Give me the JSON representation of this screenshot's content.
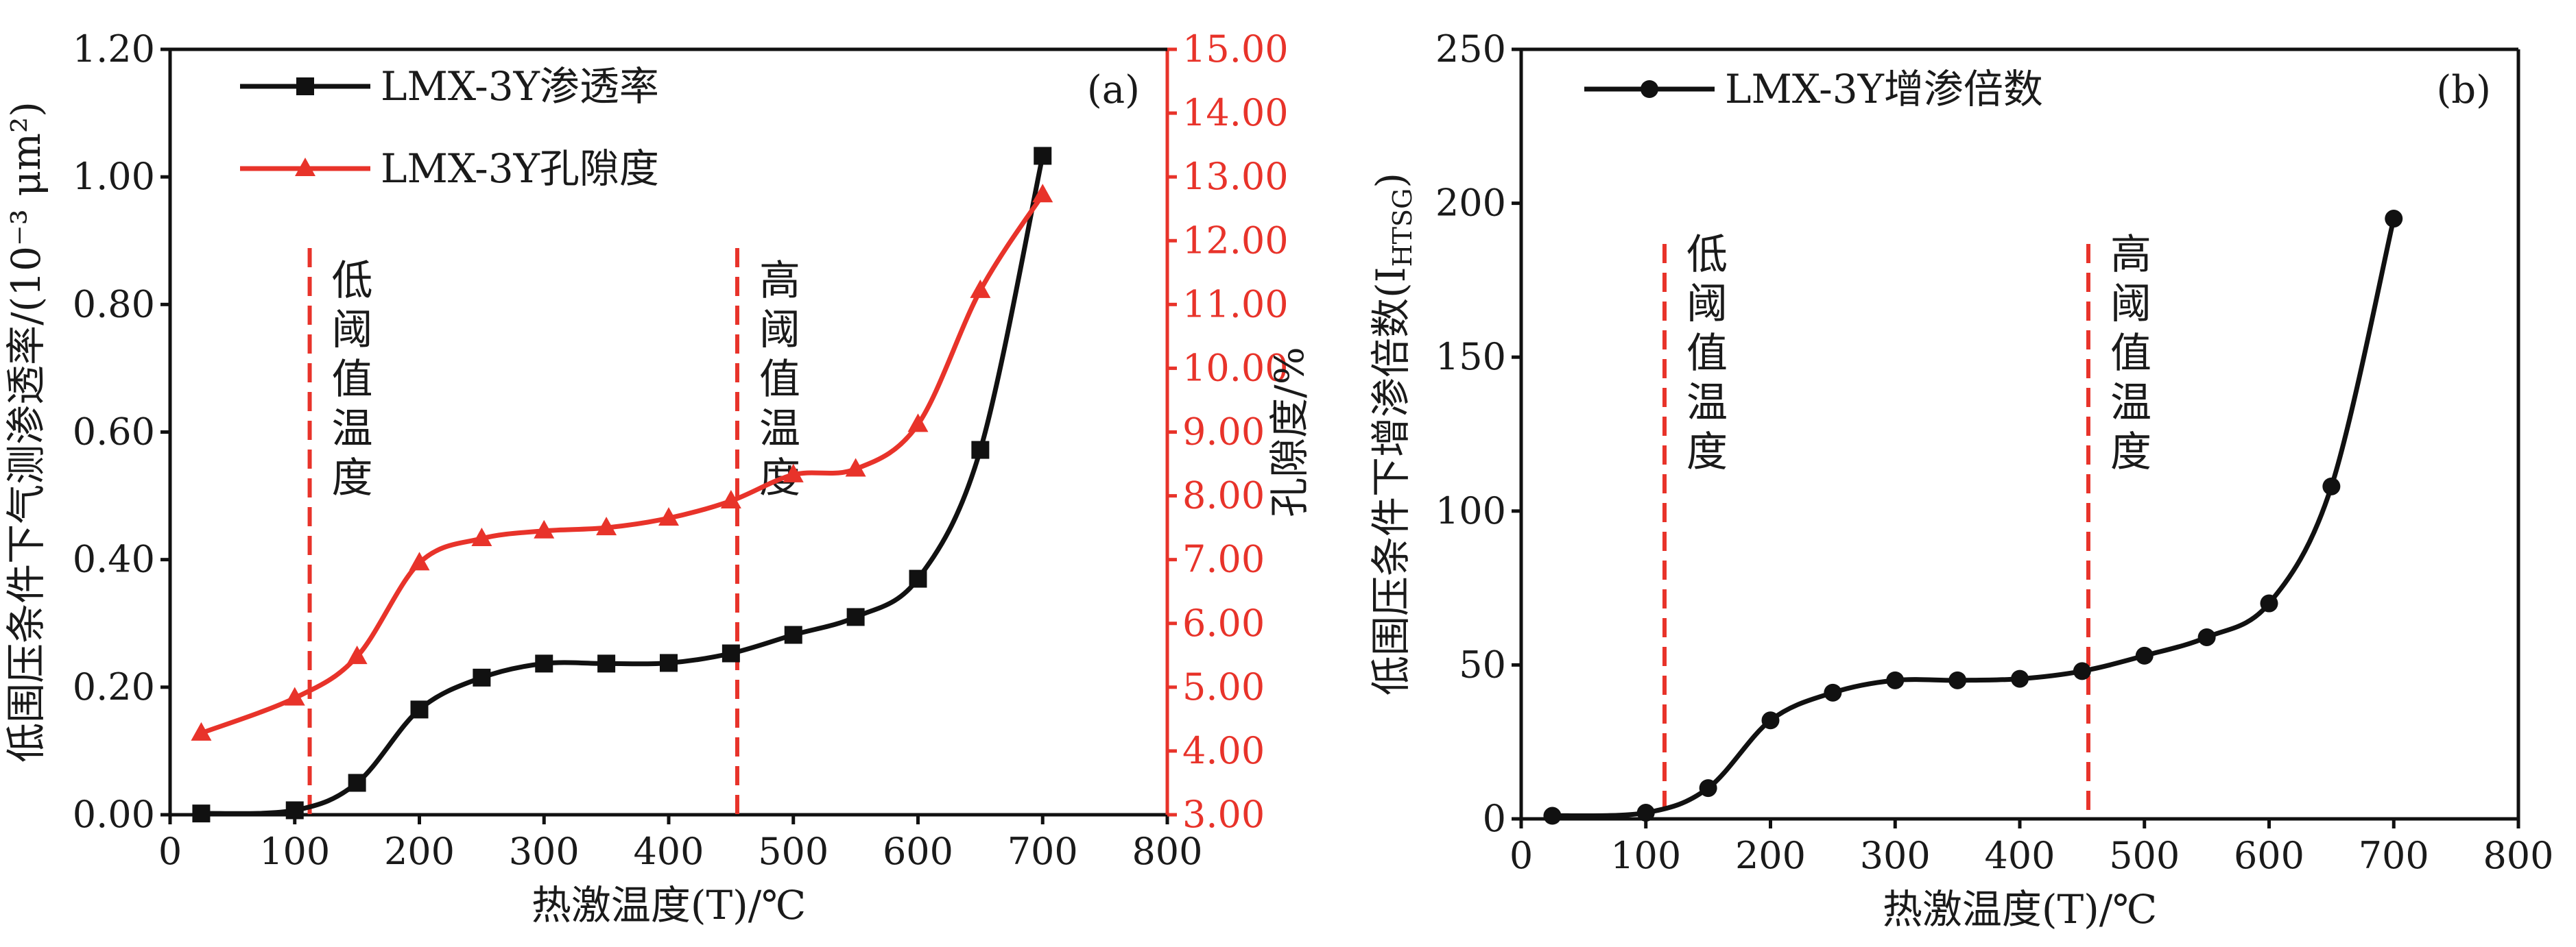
{
  "chart_data": [
    {
      "type": "line",
      "panel_label": "(a)",
      "xlabel": "热激温度(T)/℃",
      "ylabel": "低围压条件下气测渗透率/(10⁻³ μm²)",
      "y2label": "孔隙度/%",
      "xlim": [
        0,
        800
      ],
      "ylim": [
        0,
        1.2
      ],
      "y2lim": [
        3,
        15
      ],
      "x_ticks": [
        "0",
        "100",
        "200",
        "300",
        "400",
        "500",
        "600",
        "700",
        "800"
      ],
      "y_ticks": [
        "0.00",
        "0.20",
        "0.40",
        "0.60",
        "0.80",
        "1.00",
        "1.20"
      ],
      "y2_ticks": [
        "3.00",
        "4.00",
        "5.00",
        "6.00",
        "7.00",
        "8.00",
        "9.00",
        "10.00",
        "11.00",
        "12.00",
        "13.00",
        "14.00",
        "15.00"
      ],
      "legend_position": "top-left",
      "series": [
        {
          "name": "LMX-3Y渗透率",
          "axis": "left",
          "color": "#111111",
          "marker": "square",
          "x": [
            25,
            100,
            150,
            200,
            250,
            300,
            350,
            400,
            450,
            500,
            550,
            600,
            650,
            700
          ],
          "y": [
            0.002,
            0.007,
            0.05,
            0.165,
            0.215,
            0.237,
            0.237,
            0.238,
            0.253,
            0.282,
            0.31,
            0.37,
            0.572,
            1.033
          ]
        },
        {
          "name": "LMX-3Y孔隙度",
          "axis": "right",
          "color": "#e8332a",
          "marker": "triangle",
          "x": [
            25,
            100,
            150,
            200,
            250,
            300,
            350,
            400,
            450,
            500,
            550,
            600,
            650,
            700
          ],
          "y": [
            4.28,
            4.83,
            5.48,
            6.95,
            7.33,
            7.45,
            7.5,
            7.65,
            7.92,
            8.33,
            8.42,
            9.12,
            11.22,
            12.72
          ]
        }
      ],
      "annotations": [
        {
          "x": 112,
          "text": "低阈值温度",
          "position": "right"
        },
        {
          "x": 455,
          "text": "高阈值温度",
          "position": "right"
        }
      ]
    },
    {
      "type": "line",
      "panel_label": "(b)",
      "xlabel": "热激温度(T)/℃",
      "ylabel": "低围压条件下增渗倍数(I",
      "ylabel_sub": "HTSG",
      "ylabel_tail": ")",
      "xlim": [
        0,
        800
      ],
      "ylim": [
        0,
        250
      ],
      "x_ticks": [
        "0",
        "100",
        "200",
        "300",
        "400",
        "500",
        "600",
        "700",
        "800"
      ],
      "y_ticks": [
        "0",
        "50",
        "100",
        "150",
        "200",
        "250"
      ],
      "legend_position": "top-left",
      "series": [
        {
          "name": "LMX-3Y增渗倍数",
          "color": "#111111",
          "marker": "circle",
          "x": [
            25,
            100,
            150,
            200,
            250,
            300,
            350,
            400,
            450,
            500,
            550,
            600,
            650,
            700
          ],
          "y": [
            1,
            2,
            10,
            32,
            41,
            45,
            45,
            45.5,
            48,
            53,
            59,
            70,
            108,
            195
          ]
        }
      ],
      "annotations": [
        {
          "x": 115,
          "text": "低阈值温度",
          "position": "right"
        },
        {
          "x": 455,
          "text": "高阈值温度",
          "position": "right"
        }
      ]
    }
  ]
}
